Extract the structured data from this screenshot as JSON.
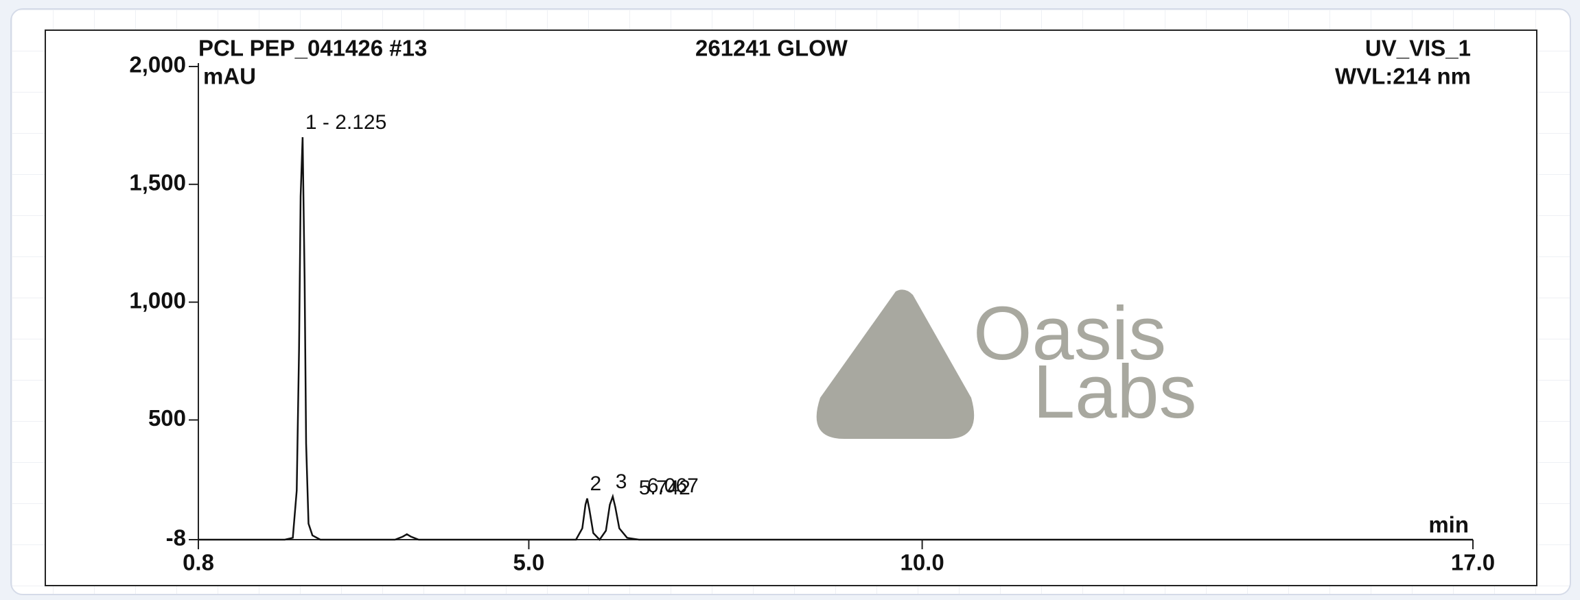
{
  "chart_data": {
    "type": "line",
    "title": "PCL PEP_041426 #13",
    "subtitle": "261241 GLOW",
    "channel": "UV_VIS_1",
    "wavelength": "WVL:214 nm",
    "ylabel": "mAU",
    "xlabel": "min",
    "watermark": [
      "Oasis",
      "Labs"
    ],
    "xlim": [
      0.8,
      17.0
    ],
    "xticks": [
      {
        "value": 0.8,
        "label": "0.8"
      },
      {
        "value": 5.0,
        "label": "5.0"
      },
      {
        "value": 10.0,
        "label": "10.0"
      },
      {
        "value": 17.0,
        "label": "17.0"
      }
    ],
    "ylim": [
      -8,
      2000
    ],
    "yticks": [
      -8,
      500,
      {
        "value": 1000,
        "label": "1,000"
      },
      {
        "value": 1500,
        "label": "1,500"
      },
      {
        "value": 2000,
        "label": "2,000"
      }
    ],
    "series": [
      {
        "name": "UV_VIS_1",
        "color": "#111111",
        "x": [
          0.8,
          1.9,
          2.0,
          2.05,
          2.08,
          2.1,
          2.125,
          2.15,
          2.17,
          2.2,
          2.25,
          2.35,
          3.3,
          3.4,
          3.45,
          3.5,
          3.6,
          5.6,
          5.68,
          5.72,
          5.742,
          5.77,
          5.82,
          5.9,
          5.98,
          6.03,
          6.067,
          6.1,
          6.15,
          6.25,
          6.4,
          17.0
        ],
        "values": [
          -8,
          -8,
          0,
          200,
          800,
          1450,
          1700,
          1100,
          400,
          60,
          10,
          -8,
          -8,
          5,
          15,
          5,
          -8,
          -8,
          40,
          140,
          167,
          120,
          20,
          -8,
          30,
          140,
          175,
          130,
          40,
          0,
          -8,
          -8
        ]
      }
    ],
    "peaks": [
      {
        "label": "1 - 2.125",
        "x": 2.125,
        "y": 1700
      },
      {
        "label": "2",
        "time": "5.742",
        "x": 5.742,
        "y": 167
      },
      {
        "label": "3",
        "time": "6.067",
        "x": 6.067,
        "y": 175
      }
    ]
  }
}
